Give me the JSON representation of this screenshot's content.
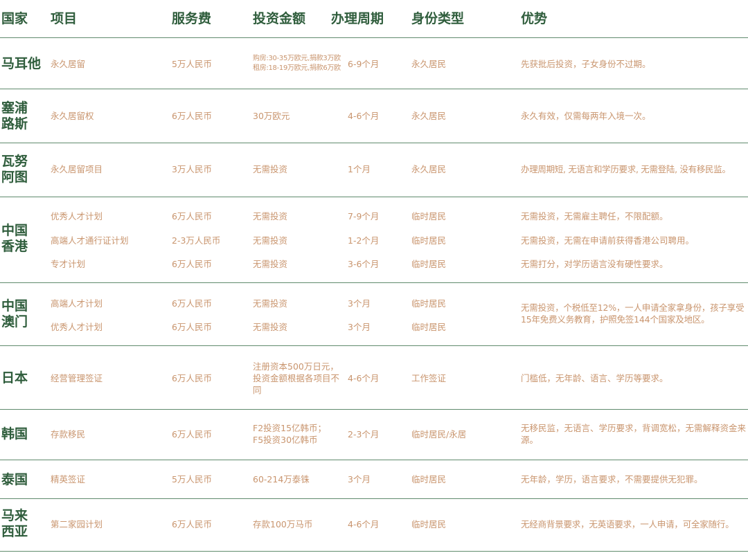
{
  "colors": {
    "header": "#2f5d3c",
    "body_text": "#c9956e",
    "divider": "#5f8a6c"
  },
  "headers": {
    "country": "国家",
    "project": "项目",
    "fee": "服务费",
    "investment": "投资金额",
    "period": "办理周期",
    "identity": "身份类型",
    "advantage": "优势"
  },
  "rows": [
    {
      "country": "马耳他",
      "items": [
        {
          "project": "永久居留",
          "fee": "5万人民币",
          "investment": "购房:30-35万欧元,捐款3万欧\n租房:18-19万欧元,捐款6万欧",
          "period": "6-9个月",
          "identity": "永久居民"
        }
      ],
      "advantage": "先获批后投资，子女身份不过期。"
    },
    {
      "country": "塞浦\n路斯",
      "items": [
        {
          "project": "永久居留权",
          "fee": "6万人民币",
          "investment": "30万欧元",
          "period": "4-6个月",
          "identity": "永久居民"
        }
      ],
      "advantage": "永久有效，仅需每两年入境一次。"
    },
    {
      "country": "瓦努\n阿图",
      "items": [
        {
          "project": "永久居留项目",
          "fee": "3万人民币",
          "investment": "无需投资",
          "period": "1个月",
          "identity": "永久居民"
        }
      ],
      "advantage": "办理周期短, 无语言和学历要求, 无需登陆, 没有移民监。"
    },
    {
      "country": "中国\n香港",
      "items": [
        {
          "project": "优秀人才计划",
          "fee": "6万人民币",
          "investment": "无需投资",
          "period": "7-9个月",
          "identity": "临时居民",
          "advantage": "无需投资，无需雇主聘任，不限配额。"
        },
        {
          "project": "高端人才通行证计划",
          "fee": "2-3万人民币",
          "investment": "无需投资",
          "period": "1-2个月",
          "identity": "临时居民",
          "advantage": "无需投资，无需在申请前获得香港公司聘用。"
        },
        {
          "project": "专才计划",
          "fee": "6万人民币",
          "investment": "无需投资",
          "period": "3-6个月",
          "identity": "临时居民",
          "advantage": "无需打分，对学历语言没有硬性要求。"
        }
      ]
    },
    {
      "country": "中国\n澳门",
      "items": [
        {
          "project": "高端人才计划",
          "fee": "6万人民币",
          "investment": "无需投资",
          "period": "3个月",
          "identity": "临时居民"
        },
        {
          "project": "优秀人才计划",
          "fee": "6万人民币",
          "investment": "无需投资",
          "period": "3个月",
          "identity": "临时居民"
        }
      ],
      "advantage": "无需投资，个税低至12%，一人申请全家拿身份，孩子享受15年免费义务教育，护照免签144个国家及地区。"
    },
    {
      "country": "日本",
      "items": [
        {
          "project": "经营管理签证",
          "fee": "6万人民币",
          "investment": "注册资本500万日元，投资金额根据各项目不同",
          "period": "4-6个月",
          "identity": "工作签证"
        }
      ],
      "advantage": "门槛低，无年龄、语言、学历等要求。"
    },
    {
      "country": "韩国",
      "items": [
        {
          "project": "存款移民",
          "fee": "6万人民币",
          "investment": "F2投资15亿韩币；\nF5投资30亿韩币",
          "period": "2-3个月",
          "identity": "临时居民/永居"
        }
      ],
      "advantage": "无移民监，无语言、学历要求，背调宽松，无需解释资金来源。"
    },
    {
      "country": "泰国",
      "items": [
        {
          "project": "精英签证",
          "fee": "5万人民币",
          "investment": "60-214万泰铢",
          "period": "3个月",
          "identity": "临时居民"
        }
      ],
      "advantage": "无年龄，学历，语言要求，不需要提供无犯罪。"
    },
    {
      "country": "马来\n西亚",
      "items": [
        {
          "project": "第二家园计划",
          "fee": "6万人民币",
          "investment": "存款100万马币",
          "period": "4-6个月",
          "identity": "临时居民"
        }
      ],
      "advantage": "无经商背景要求，无英语要求，一人申请，可全家随行。"
    }
  ]
}
